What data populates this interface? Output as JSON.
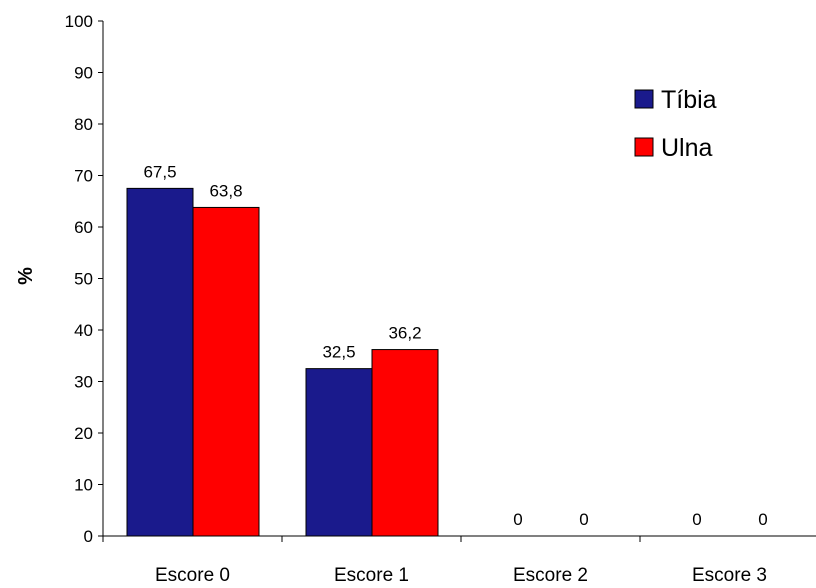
{
  "chart_data": {
    "type": "bar",
    "title": "",
    "xlabel": "",
    "ylabel": "%",
    "ylim": [
      0,
      100
    ],
    "yticks": [
      0,
      10,
      20,
      30,
      40,
      50,
      60,
      70,
      80,
      90,
      100
    ],
    "categories": [
      "Escore 0",
      "Escore 1",
      "Escore 2",
      "Escore 3"
    ],
    "series": [
      {
        "name": "Tíbia",
        "color": "#1a1a8c",
        "values": [
          67.5,
          32.5,
          0,
          0
        ],
        "labels": [
          "67,5",
          "32,5",
          "0",
          "0"
        ]
      },
      {
        "name": "Ulna",
        "color": "#ff0000",
        "values": [
          63.8,
          36.2,
          0,
          0
        ],
        "labels": [
          "63,8",
          "36,2",
          "0",
          "0"
        ]
      }
    ],
    "grid": false,
    "legend_position": "top-right"
  }
}
